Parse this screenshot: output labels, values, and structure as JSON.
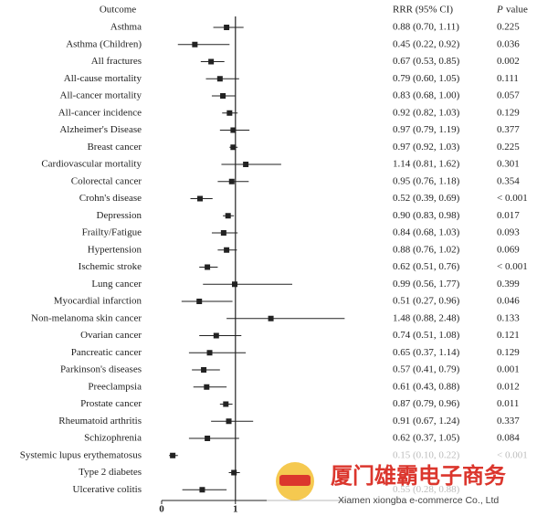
{
  "chart_data": {
    "type": "forest",
    "headers": {
      "outcome": "Outcome",
      "estimate": "RRR (95% CI)",
      "p_italic": "P",
      "p_rest": "value"
    },
    "categories": [
      "Asthma",
      "Asthma (Children)",
      "All fractures",
      "All-cause mortality",
      "All-cancer mortality",
      "All-cancer incidence",
      "Alzheimer's Disease",
      "Breast cancer",
      "Cardiovascular mortality",
      "Colorectal cancer",
      "Crohn's disease",
      "Depression",
      "Frailty/Fatigue",
      "Hypertension",
      "Ischemic stroke",
      "Lung cancer",
      "Myocardial infarction",
      "Non-melanoma skin cancer",
      "Ovarian cancer",
      "Pancreatic cancer",
      "Parkinson's diseases",
      "Preeclampsia",
      "Prostate cancer",
      "Rheumatoid arthritis",
      "Schizophrenia",
      "Systemic lupus erythematosus",
      "Type 2 diabetes",
      "Ulcerative colitis"
    ],
    "values": [
      0.88,
      0.45,
      0.67,
      0.79,
      0.83,
      0.92,
      0.97,
      0.97,
      1.14,
      0.95,
      0.52,
      0.9,
      0.84,
      0.88,
      0.62,
      0.99,
      0.51,
      1.48,
      0.74,
      0.65,
      0.57,
      0.61,
      0.87,
      0.91,
      0.62,
      0.15,
      0.98,
      0.55
    ],
    "lower": [
      0.7,
      0.22,
      0.53,
      0.6,
      0.68,
      0.82,
      0.79,
      0.92,
      0.81,
      0.76,
      0.39,
      0.83,
      0.68,
      0.76,
      0.51,
      0.56,
      0.27,
      0.88,
      0.51,
      0.37,
      0.41,
      0.43,
      0.79,
      0.67,
      0.37,
      0.1,
      0.91,
      0.28
    ],
    "upper": [
      1.11,
      0.92,
      0.85,
      1.05,
      1.0,
      1.03,
      1.19,
      1.03,
      1.62,
      1.18,
      0.69,
      0.98,
      1.03,
      1.02,
      0.76,
      1.77,
      0.96,
      2.48,
      1.08,
      1.14,
      0.79,
      0.88,
      0.96,
      1.24,
      1.05,
      0.22,
      1.06,
      0.88
    ],
    "value_labels": [
      "0.88 (0.70, 1.11)",
      "0.45 (0.22, 0.92)",
      "0.67 (0.53, 0.85)",
      "0.79 (0.60, 1.05)",
      "0.83 (0.68, 1.00)",
      "0.92 (0.82, 1.03)",
      "0.97 (0.79, 1.19)",
      "0.97 (0.92, 1.03)",
      "1.14 (0.81, 1.62)",
      "0.95 (0.76, 1.18)",
      "0.52 (0.39, 0.69)",
      "0.90 (0.83, 0.98)",
      "0.84 (0.68, 1.03)",
      "0.88 (0.76, 1.02)",
      "0.62 (0.51, 0.76)",
      "0.99 (0.56, 1.77)",
      "0.51 (0.27, 0.96)",
      "1.48 (0.88, 2.48)",
      "0.74 (0.51, 1.08)",
      "0.65 (0.37, 1.14)",
      "0.57 (0.41, 0.79)",
      "0.61 (0.43, 0.88)",
      "0.87 (0.79, 0.96)",
      "0.91 (0.67, 1.24)",
      "0.62 (0.37, 1.05)",
      "0.15 (0.10, 0.22)",
      null,
      "0.55 (0.28, 0.88)"
    ],
    "p_values": [
      "0.225",
      "0.036",
      "0.002",
      "0.111",
      "0.057",
      "0.129",
      "0.377",
      "0.225",
      "0.301",
      "0.354",
      "< 0.001",
      "0.017",
      "0.093",
      "0.069",
      "< 0.001",
      "0.399",
      "0.046",
      "0.133",
      "0.121",
      "0.129",
      "0.001",
      "0.012",
      "0.011",
      "0.337",
      "0.084",
      "< 0.001",
      null,
      null
    ],
    "color": "#222222",
    "xlim": [
      0,
      2.5
    ],
    "xticks": [
      0,
      1
    ],
    "reference": 1
  },
  "watermark": {
    "title": "厦门雄霸电子商务",
    "subtitle": "Xiamen xiongba e-commerce Co., Ltd"
  }
}
